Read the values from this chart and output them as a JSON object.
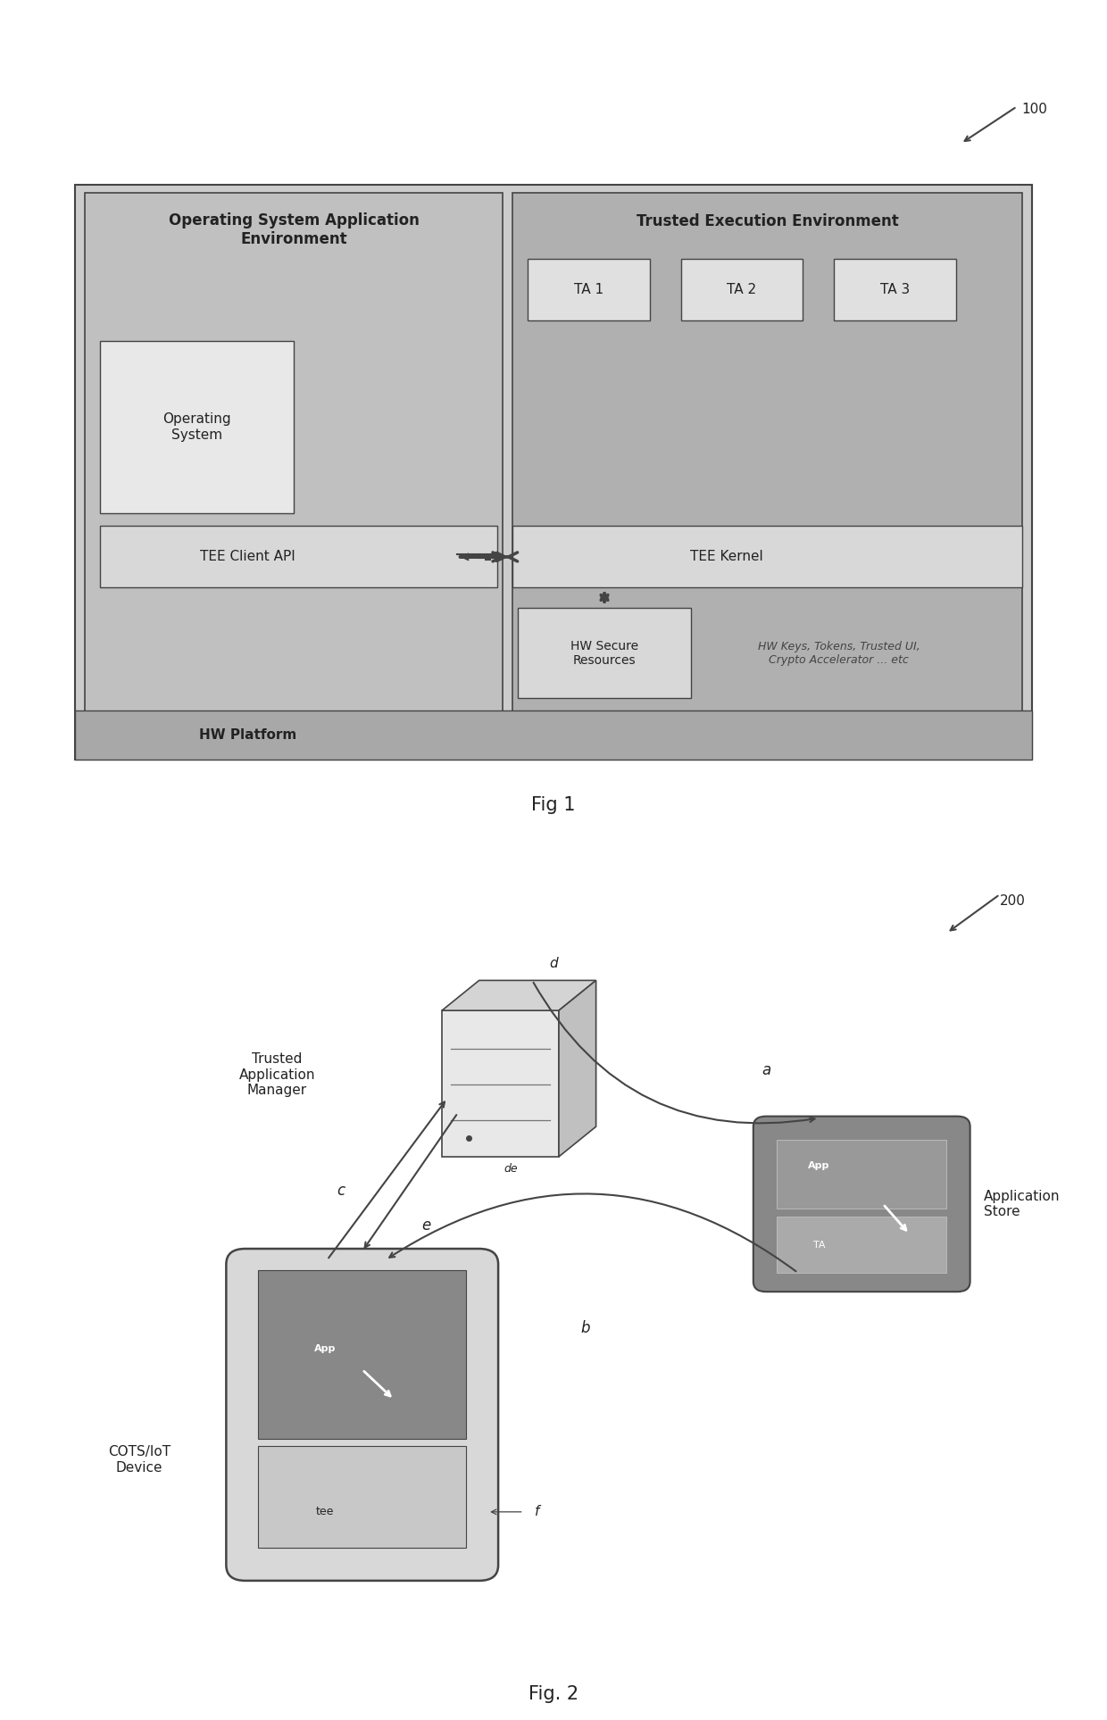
{
  "fig1_title": "Fig 1",
  "fig2_title": "Fig. 2",
  "ref_num1": "100",
  "ref_num2": "200",
  "os_env_label": "Operating System Application\nEnvironment",
  "tee_env_label": "Trusted Execution Environment",
  "ta_labels": [
    "TA 1",
    "TA 2",
    "TA 3"
  ],
  "os_label": "Operating\nSystem",
  "tee_client_label": "TEE Client API",
  "tee_kernel_label": "TEE Kernel",
  "hw_secure_label": "HW Secure\nResources",
  "hw_keys_label": "HW Keys, Tokens, Trusted UI,\nCrypto Accelerator ... etc",
  "hw_platform_label": "HW Platform",
  "tam_label": "Trusted\nApplication\nManager",
  "app_store_label": "Application\nStore",
  "cots_label": "COTS/IoT\nDevice",
  "bg_color": "#ffffff",
  "box_outer_color": "#cccccc",
  "box_os_env_color": "#c0c0c0",
  "box_tee_env_color": "#b0b0b0",
  "box_ta_color": "#e0e0e0",
  "box_os_color": "#e8e8e8",
  "box_api_color": "#d8d8d8",
  "box_hw_platform_color": "#a8a8a8",
  "box_hw_sec_color": "#d8d8d8",
  "app_store_color": "#888888",
  "app_store_inner_color": "#aaaaaa",
  "phone_outer_color": "#d8d8d8",
  "phone_screen_dark": "#888888",
  "phone_screen_light": "#c8c8c8",
  "line_color": "#444444",
  "text_color": "#222222",
  "italic_text_color": "#444444"
}
